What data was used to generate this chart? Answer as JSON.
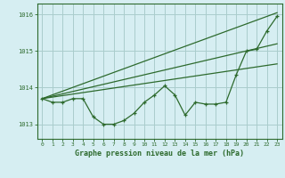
{
  "title": "Graphe pression niveau de la mer (hPa)",
  "bg_color": "#d6eef2",
  "grid_color": "#aacccc",
  "line_color": "#2d6a2d",
  "text_color": "#2d6a2d",
  "xlim": [
    -0.5,
    23.5
  ],
  "ylim": [
    1012.6,
    1016.3
  ],
  "yticks": [
    1013,
    1014,
    1015,
    1016
  ],
  "xticks": [
    0,
    1,
    2,
    3,
    4,
    5,
    6,
    7,
    8,
    9,
    10,
    11,
    12,
    13,
    14,
    15,
    16,
    17,
    18,
    19,
    20,
    21,
    22,
    23
  ],
  "series": [
    {
      "x": [
        0,
        1,
        2,
        3,
        4,
        5,
        6,
        7,
        8,
        9,
        10,
        11,
        12,
        13,
        14,
        15,
        16,
        17,
        18,
        19,
        20,
        21,
        22,
        23
      ],
      "y": [
        1013.7,
        1013.6,
        1013.6,
        1013.7,
        1013.7,
        1013.2,
        1013.0,
        1013.0,
        1013.1,
        1013.3,
        1013.6,
        1013.8,
        1014.05,
        1013.8,
        1013.25,
        1013.6,
        1013.55,
        1013.55,
        1013.6,
        1014.35,
        1015.0,
        1015.05,
        1015.55,
        1015.95
      ],
      "marker": "+"
    },
    {
      "x": [
        0,
        23
      ],
      "y": [
        1013.7,
        1016.05
      ],
      "marker": null
    },
    {
      "x": [
        0,
        23
      ],
      "y": [
        1013.7,
        1015.2
      ],
      "marker": null
    },
    {
      "x": [
        0,
        23
      ],
      "y": [
        1013.7,
        1014.65
      ],
      "marker": null
    }
  ]
}
